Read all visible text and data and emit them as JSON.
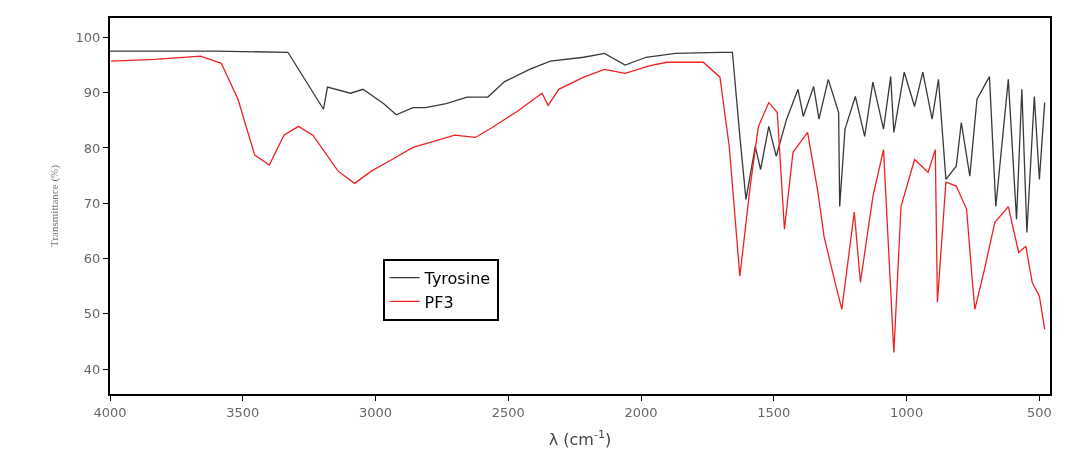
{
  "chart_data": {
    "type": "line",
    "xlabel": "λ (cm$^{-1}$)",
    "ylabel": "Transmittance (%)",
    "xlim": [
      4000,
      460
    ],
    "xticks": [
      4000,
      3500,
      3000,
      2500,
      2000,
      1500,
      1000,
      500
    ],
    "ylim": [
      35.5,
      103.5
    ],
    "yticks": [
      40,
      50,
      60,
      70,
      80,
      90,
      100
    ],
    "legend": "bottom",
    "marker": "none",
    "line_style": "solid",
    "series": [
      {
        "name": "Tyrosine",
        "color": "#3a3a3a",
        "x": [
          4000,
          3600,
          3330,
          3196,
          3181,
          3094,
          3047,
          2969,
          2922,
          2859,
          2812,
          2734,
          2655,
          2577,
          2514,
          2420,
          2342,
          2216,
          2138,
          2060,
          1981,
          1871,
          1700,
          1656,
          1628,
          1605,
          1570,
          1550,
          1519,
          1491,
          1452,
          1409,
          1389,
          1350,
          1330,
          1295,
          1256,
          1252,
          1232,
          1193,
          1158,
          1127,
          1087,
          1060,
          1048,
          1009,
          970,
          939,
          904,
          880,
          852,
          813,
          794,
          762,
          735,
          688,
          664,
          617,
          586,
          566,
          547,
          519,
          500,
          480
        ],
        "values": [
          97.5,
          97.5,
          97.3,
          87,
          91,
          89.9,
          90.6,
          88,
          86,
          87.3,
          87.3,
          88,
          89.2,
          89.2,
          92,
          94.2,
          95.7,
          96.4,
          97.1,
          95,
          96.4,
          97.1,
          97.3,
          97.3,
          82.1,
          70.7,
          80.3,
          76.1,
          83.9,
          78.5,
          85.2,
          90.6,
          85.7,
          91.1,
          85.2,
          92.4,
          86.4,
          69.4,
          83.4,
          89.3,
          82.1,
          91.9,
          83.4,
          92.9,
          82.8,
          93.7,
          87.5,
          93.7,
          85.2,
          92.4,
          74.3,
          76.7,
          84.6,
          74.9,
          88.8,
          92.9,
          69.4,
          92.4,
          67.1,
          90.6,
          64.7,
          89.3,
          74.3,
          88.2
        ]
      },
      {
        "name": "PF3",
        "color": "#ee2222",
        "x": [
          3996,
          3831,
          3659,
          3581,
          3518,
          3455,
          3400,
          3345,
          3290,
          3236,
          3141,
          3079,
          3016,
          2938,
          2859,
          2781,
          2702,
          2624,
          2561,
          2467,
          2373,
          2350,
          2310,
          2216,
          2138,
          2060,
          1966,
          1903,
          1766,
          1703,
          1668,
          1628,
          1589,
          1558,
          1519,
          1487,
          1460,
          1428,
          1373,
          1334,
          1311,
          1272,
          1244,
          1197,
          1174,
          1127,
          1087,
          1048,
          1021,
          970,
          919,
          892,
          884,
          852,
          813,
          774,
          754,
          743,
          707,
          668,
          617,
          578,
          551,
          527,
          500,
          480
        ],
        "values": [
          95.7,
          96,
          96.6,
          95.3,
          88.8,
          78.7,
          76.9,
          82.3,
          83.9,
          82.3,
          75.8,
          73.6,
          75.8,
          77.9,
          80.1,
          81.2,
          82.3,
          81.9,
          83.7,
          86.6,
          89.9,
          87.7,
          90.6,
          92.8,
          94.2,
          93.5,
          94.9,
          95.5,
          95.5,
          92.8,
          80.3,
          56.8,
          73.1,
          83.9,
          88.2,
          86.4,
          65.3,
          79.2,
          82.8,
          72,
          64,
          56.2,
          50.8,
          68.4,
          55.7,
          71.2,
          79.7,
          43,
          69.4,
          77.9,
          75.6,
          79.7,
          52.1,
          73.8,
          73.1,
          68.9,
          56.8,
          50.8,
          58,
          66.5,
          69.4,
          61.1,
          62.2,
          55.7,
          53.2,
          47.2
        ]
      }
    ]
  }
}
